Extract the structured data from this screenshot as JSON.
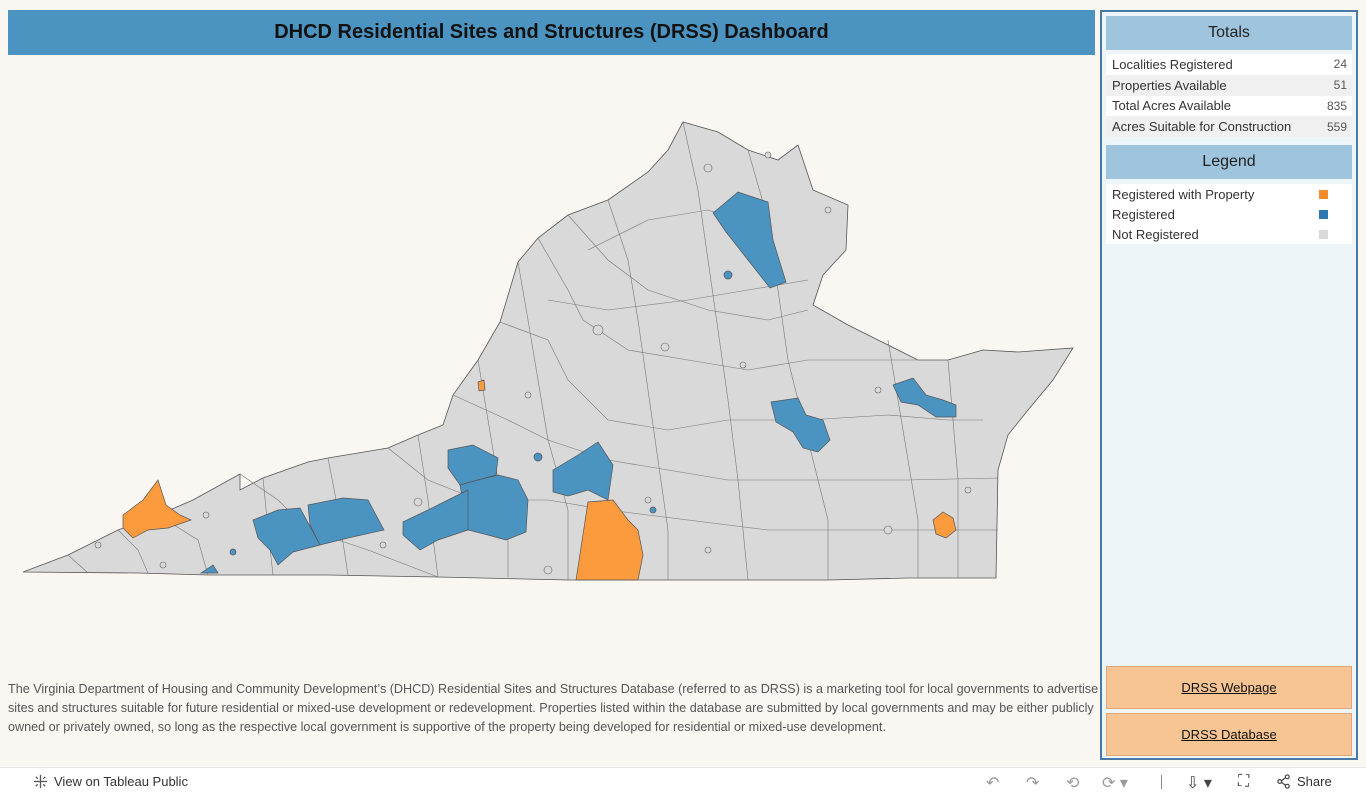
{
  "header": {
    "title": "DHCD Residential Sites and Structures (DRSS) Dashboard"
  },
  "colors": {
    "registered_with_property": "#f58b2a",
    "registered": "#2c78b0",
    "not_registered": "#d9d9d9",
    "title_bar": "#4b94c1",
    "panel_header": "#9fc5de",
    "link_button": "#f7c593"
  },
  "totals": {
    "heading": "Totals",
    "rows": [
      {
        "label": "Localities Registered",
        "value": "24"
      },
      {
        "label": "Properties Available",
        "value": "51"
      },
      {
        "label": "Total Acres Available",
        "value": "835"
      },
      {
        "label": "Acres Suitable for Construction",
        "value": "559"
      }
    ]
  },
  "legend": {
    "heading": "Legend",
    "items": [
      {
        "label": "Registered with Property",
        "color": "#f58b2a"
      },
      {
        "label": "Registered",
        "color": "#2c78b0"
      },
      {
        "label": "Not Registered",
        "color": "#d9d9d9"
      }
    ]
  },
  "links": {
    "webpage": "DRSS Webpage",
    "database": "DRSS Database"
  },
  "description": "The Virginia Department of Housing and Community Development’s (DHCD) Residential Sites and Structures Database (referred to as DRSS) is a marketing tool for local governments to advertise sites and structures suitable for future residential or mixed-use development or redevelopment. Properties listed within the database are submitted by local governments and may be either publicly owned or privately owned, so long as the respective local government is supportive of the property being developed for residential or mixed-use development.",
  "footer": {
    "view_on_tableau": "View on Tableau Public",
    "share": "Share",
    "icons": [
      "tableau-logo-icon",
      "undo-icon",
      "redo-icon",
      "revert-icon",
      "refresh-icon",
      "download-icon",
      "fullscreen-icon",
      "share-icon"
    ]
  }
}
